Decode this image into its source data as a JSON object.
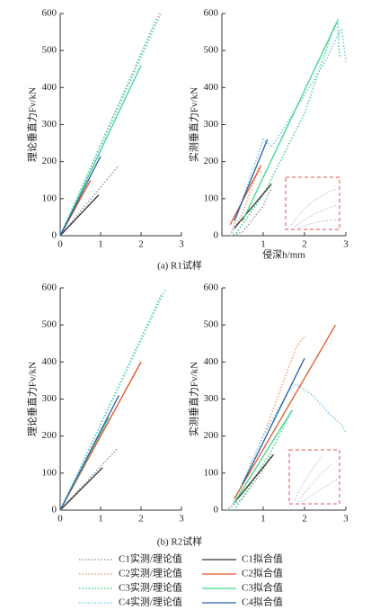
{
  "captions": [
    "(a) R1试样",
    "(b) R2试样"
  ],
  "chart_data": [
    {
      "type": "line",
      "ylabel": "理论垂直力Fv/kN",
      "xlim": [
        0,
        3
      ],
      "xticks": [
        0,
        1,
        2,
        3
      ],
      "ylim": [
        0,
        600
      ],
      "yticks": [
        0,
        100,
        200,
        300,
        400,
        500,
        600
      ],
      "series": [
        {
          "name": "C1实测/理论值",
          "color": "#a0a0a0",
          "style": "dotted",
          "x": [
            0,
            1.45
          ],
          "values": [
            0,
            190
          ]
        },
        {
          "name": "C2实测/理论值",
          "color": "#f5a37a",
          "style": "dotted",
          "x": [
            0,
            2.45
          ],
          "values": [
            0,
            600
          ]
        },
        {
          "name": "C3实测/理论值",
          "color": "#4cd68a",
          "style": "dotted",
          "x": [
            0,
            2.4
          ],
          "values": [
            0,
            590
          ]
        },
        {
          "name": "C4实测/理论值",
          "color": "#7fcde8",
          "style": "dotted",
          "x": [
            0,
            2.5
          ],
          "values": [
            0,
            600
          ]
        },
        {
          "name": "C1拟合值",
          "color": "#333333",
          "style": "solid",
          "x": [
            0,
            0.95
          ],
          "values": [
            0,
            110
          ]
        },
        {
          "name": "C2拟合值",
          "color": "#e0562a",
          "style": "solid",
          "x": [
            0,
            0.75
          ],
          "values": [
            0,
            150
          ]
        },
        {
          "name": "C3拟合值",
          "color": "#3dd68c",
          "style": "solid",
          "x": [
            0,
            2.0
          ],
          "values": [
            0,
            460
          ]
        },
        {
          "name": "C4拟合值",
          "color": "#2a5fa8",
          "style": "solid",
          "x": [
            0,
            1.0
          ],
          "values": [
            0,
            215
          ]
        }
      ]
    },
    {
      "type": "line",
      "ylabel": "实测垂直力Fv/kN",
      "xlabel": "侵深h/mm",
      "xlim": [
        0,
        3
      ],
      "xticks": [
        1,
        2,
        3
      ],
      "ylim": [
        0,
        600
      ],
      "yticks": [
        0,
        100,
        200,
        300,
        400,
        500,
        600
      ],
      "series": [
        {
          "name": "C1实测/理论值",
          "color": "#a0a0a0",
          "style": "dotted",
          "x": [
            0.2,
            0.5,
            1.0,
            1.2
          ],
          "values": [
            0,
            10,
            80,
            130
          ]
        },
        {
          "name": "C2实测/理论值",
          "color": "#f5a37a",
          "style": "dotted",
          "x": [
            0.2,
            0.5,
            0.9,
            0.95
          ],
          "values": [
            0,
            60,
            185,
            170
          ]
        },
        {
          "name": "C3实测/理论值",
          "color": "#4cd68a",
          "style": "dotted",
          "x": [
            0.3,
            1.0,
            2.0,
            2.7,
            2.8,
            2.85
          ],
          "values": [
            0,
            110,
            330,
            560,
            580,
            480
          ]
        },
        {
          "name": "C4实测/理论值",
          "color": "#7fcde8",
          "style": "dotted",
          "x": [
            0.2,
            0.6,
            1.0,
            1.2,
            1.5,
            2.0,
            2.5,
            2.8,
            2.9,
            3.0
          ],
          "values": [
            0,
            130,
            260,
            240,
            290,
            380,
            470,
            540,
            560,
            470
          ]
        },
        {
          "name": "C1拟合值",
          "color": "#333333",
          "style": "solid",
          "x": [
            0.3,
            1.2
          ],
          "values": [
            20,
            140
          ]
        },
        {
          "name": "C2拟合值",
          "color": "#e0562a",
          "style": "solid",
          "x": [
            0.2,
            0.95
          ],
          "values": [
            30,
            190
          ]
        },
        {
          "name": "C3拟合值",
          "color": "#3dd68c",
          "style": "solid",
          "x": [
            0.5,
            2.8
          ],
          "values": [
            40,
            580
          ]
        },
        {
          "name": "C4拟合值",
          "color": "#2a5fa8",
          "style": "solid",
          "x": [
            0.3,
            1.1
          ],
          "values": [
            40,
            260
          ]
        }
      ]
    },
    {
      "type": "line",
      "ylabel": "理论垂直力Fv/kN",
      "xlim": [
        0,
        3
      ],
      "xticks": [
        0,
        1,
        2,
        3
      ],
      "ylim": [
        0,
        600
      ],
      "yticks": [
        0,
        100,
        200,
        300,
        400,
        500,
        600
      ],
      "series": [
        {
          "name": "C1实测/理论值",
          "color": "#a0a0a0",
          "style": "dotted",
          "x": [
            0,
            1.4
          ],
          "values": [
            0,
            165
          ]
        },
        {
          "name": "C2实测/理论值",
          "color": "#f5a37a",
          "style": "dotted",
          "x": [
            0,
            2.0
          ],
          "values": [
            0,
            400
          ]
        },
        {
          "name": "C3实测/理论值",
          "color": "#4cd68a",
          "style": "dotted",
          "x": [
            0,
            2.5
          ],
          "values": [
            0,
            580
          ]
        },
        {
          "name": "C4实测/理论值",
          "color": "#7fcde8",
          "style": "dotted",
          "x": [
            0,
            2.6
          ],
          "values": [
            0,
            595
          ]
        },
        {
          "name": "C1拟合值",
          "color": "#333333",
          "style": "solid",
          "x": [
            0,
            1.05
          ],
          "values": [
            0,
            115
          ]
        },
        {
          "name": "C2拟合值",
          "color": "#e0562a",
          "style": "solid",
          "x": [
            0,
            2.0
          ],
          "values": [
            0,
            400
          ]
        },
        {
          "name": "C3拟合值",
          "color": "#3dd68c",
          "style": "solid",
          "x": [
            0,
            1.2
          ],
          "values": [
            0,
            250
          ]
        },
        {
          "name": "C4拟合值",
          "color": "#2a5fa8",
          "style": "solid",
          "x": [
            0,
            1.45
          ],
          "values": [
            0,
            310
          ]
        }
      ]
    },
    {
      "type": "line",
      "ylabel": "实测垂直力Fv/kN",
      "xlim": [
        0,
        3
      ],
      "xticks": [
        1,
        2,
        3
      ],
      "ylim": [
        0,
        600
      ],
      "yticks": [
        0,
        100,
        200,
        300,
        400,
        500,
        600
      ],
      "series": [
        {
          "name": "C1实测/理论值",
          "color": "#a0a0a0",
          "style": "dotted",
          "x": [
            0.1,
            0.5,
            1.0,
            1.2
          ],
          "values": [
            0,
            30,
            110,
            150
          ]
        },
        {
          "name": "C2实测/理论值",
          "color": "#f5a37a",
          "style": "dotted",
          "x": [
            0.2,
            1.0,
            1.8,
            2.0
          ],
          "values": [
            0,
            200,
            440,
            470
          ]
        },
        {
          "name": "C3实测/理论值",
          "color": "#4cd68a",
          "style": "dotted",
          "x": [
            0.3,
            1.2,
            1.7
          ],
          "values": [
            0,
            160,
            270
          ]
        },
        {
          "name": "C4实测/理论值",
          "color": "#7fcde8",
          "style": "dotted",
          "x": [
            0.2,
            1.0,
            1.6,
            1.8,
            2.2,
            2.6,
            2.9,
            3.0
          ],
          "values": [
            0,
            200,
            320,
            340,
            310,
            260,
            230,
            210
          ]
        },
        {
          "name": "C1拟合值",
          "color": "#333333",
          "style": "solid",
          "x": [
            0.3,
            1.25
          ],
          "values": [
            20,
            150
          ]
        },
        {
          "name": "C2拟合值",
          "color": "#e0562a",
          "style": "solid",
          "x": [
            0.3,
            2.75
          ],
          "values": [
            30,
            500
          ]
        },
        {
          "name": "C3拟合值",
          "color": "#3dd68c",
          "style": "solid",
          "x": [
            0.3,
            1.7
          ],
          "values": [
            20,
            270
          ]
        },
        {
          "name": "C4拟合值",
          "color": "#2a5fa8",
          "style": "solid",
          "x": [
            0.5,
            2.0
          ],
          "values": [
            70,
            410
          ]
        }
      ]
    }
  ]
}
